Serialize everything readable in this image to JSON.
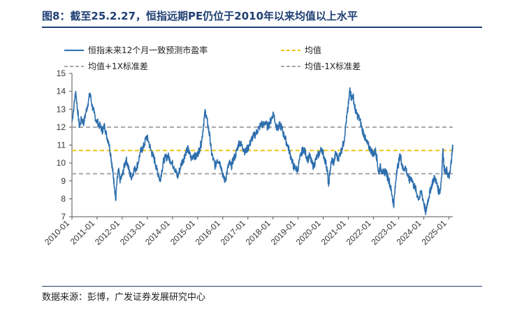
{
  "header": {
    "title": "图8：截至25.2.27，恒指远期PE仍位于2010年以来均值以上水平"
  },
  "footer": {
    "source": "数据来源：彭博，广发证券发展研究中心"
  },
  "colors": {
    "series": "#2e6fae",
    "mean": "#f0c419",
    "band": "#a6a6a6",
    "rule": "#1f3f73"
  },
  "chart_data": {
    "type": "line",
    "title": "图8：截至25.2.27，恒指远期PE仍位于2010年以来均值以上水平",
    "xlabel": "",
    "ylabel": "",
    "ylim": [
      7,
      15
    ],
    "yticks": [
      7,
      8,
      9,
      10,
      11,
      12,
      13,
      14,
      15
    ],
    "xlim": [
      2010.0,
      2025.15
    ],
    "xtick_labels": [
      "2010-01",
      "2011-01",
      "2012-01",
      "2013-01",
      "2014-01",
      "2015-01",
      "2016-01",
      "2017-01",
      "2018-01",
      "2019-01",
      "2020-01",
      "2021-01",
      "2022-01",
      "2023-01",
      "2024-01",
      "2025-01"
    ],
    "legend": {
      "series": "恒指未来12个月一致预测市盈率",
      "mean": "均值",
      "plus": "均值+1X标准差",
      "minus": "均值-1X标准差"
    },
    "reference_lines": {
      "mean": 10.7,
      "plus_1sd": 12.0,
      "minus_1sd": 9.4
    },
    "series": [
      {
        "name": "恒指未来12个月一致预测市盈率",
        "points": [
          [
            2010.0,
            12.3
          ],
          [
            2010.08,
            13.2
          ],
          [
            2010.15,
            14.0
          ],
          [
            2010.22,
            13.0
          ],
          [
            2010.3,
            12.0
          ],
          [
            2010.38,
            12.5
          ],
          [
            2010.46,
            12.2
          ],
          [
            2010.55,
            12.8
          ],
          [
            2010.63,
            13.3
          ],
          [
            2010.72,
            13.9
          ],
          [
            2010.8,
            13.2
          ],
          [
            2010.88,
            12.8
          ],
          [
            2010.96,
            12.4
          ],
          [
            2011.05,
            12.2
          ],
          [
            2011.14,
            12.0
          ],
          [
            2011.22,
            11.8
          ],
          [
            2011.3,
            12.1
          ],
          [
            2011.38,
            11.5
          ],
          [
            2011.46,
            11.2
          ],
          [
            2011.55,
            10.4
          ],
          [
            2011.6,
            9.8
          ],
          [
            2011.65,
            9.2
          ],
          [
            2011.7,
            8.6
          ],
          [
            2011.74,
            7.9
          ],
          [
            2011.78,
            8.8
          ],
          [
            2011.85,
            9.6
          ],
          [
            2011.92,
            9.0
          ],
          [
            2012.0,
            9.3
          ],
          [
            2012.08,
            9.8
          ],
          [
            2012.15,
            10.2
          ],
          [
            2012.22,
            9.9
          ],
          [
            2012.3,
            9.4
          ],
          [
            2012.38,
            9.2
          ],
          [
            2012.46,
            9.6
          ],
          [
            2012.55,
            9.7
          ],
          [
            2012.63,
            10.0
          ],
          [
            2012.72,
            10.6
          ],
          [
            2012.8,
            10.8
          ],
          [
            2012.88,
            11.0
          ],
          [
            2012.96,
            11.5
          ],
          [
            2013.05,
            11.2
          ],
          [
            2013.14,
            10.7
          ],
          [
            2013.22,
            10.4
          ],
          [
            2013.3,
            10.1
          ],
          [
            2013.38,
            9.6
          ],
          [
            2013.46,
            9.3
          ],
          [
            2013.5,
            9.0
          ],
          [
            2013.58,
            9.6
          ],
          [
            2013.66,
            10.2
          ],
          [
            2013.74,
            10.3
          ],
          [
            2013.82,
            10.4
          ],
          [
            2013.9,
            10.2
          ],
          [
            2013.98,
            10.0
          ],
          [
            2014.06,
            9.8
          ],
          [
            2014.14,
            9.5
          ],
          [
            2014.2,
            9.2
          ],
          [
            2014.28,
            9.6
          ],
          [
            2014.36,
            10.0
          ],
          [
            2014.44,
            10.2
          ],
          [
            2014.52,
            10.6
          ],
          [
            2014.6,
            10.8
          ],
          [
            2014.68,
            10.5
          ],
          [
            2014.76,
            10.2
          ],
          [
            2014.84,
            10.5
          ],
          [
            2014.92,
            10.3
          ],
          [
            2015.0,
            10.5
          ],
          [
            2015.08,
            10.8
          ],
          [
            2015.16,
            11.2
          ],
          [
            2015.24,
            12.2
          ],
          [
            2015.3,
            12.9
          ],
          [
            2015.36,
            12.5
          ],
          [
            2015.42,
            12.0
          ],
          [
            2015.48,
            11.5
          ],
          [
            2015.55,
            10.6
          ],
          [
            2015.62,
            10.2
          ],
          [
            2015.7,
            9.8
          ],
          [
            2015.78,
            10.2
          ],
          [
            2015.86,
            10.1
          ],
          [
            2015.94,
            9.8
          ],
          [
            2016.02,
            9.2
          ],
          [
            2016.1,
            9.0
          ],
          [
            2016.18,
            9.6
          ],
          [
            2016.26,
            10.0
          ],
          [
            2016.34,
            9.8
          ],
          [
            2016.42,
            10.2
          ],
          [
            2016.5,
            10.4
          ],
          [
            2016.58,
            10.8
          ],
          [
            2016.66,
            11.2
          ],
          [
            2016.74,
            11.0
          ],
          [
            2016.82,
            10.8
          ],
          [
            2016.9,
            10.6
          ],
          [
            2016.98,
            10.8
          ],
          [
            2017.06,
            11.0
          ],
          [
            2017.14,
            11.3
          ],
          [
            2017.22,
            11.5
          ],
          [
            2017.3,
            11.6
          ],
          [
            2017.38,
            11.8
          ],
          [
            2017.46,
            12.0
          ],
          [
            2017.54,
            12.2
          ],
          [
            2017.62,
            12.1
          ],
          [
            2017.7,
            12.3
          ],
          [
            2017.78,
            12.0
          ],
          [
            2017.86,
            12.2
          ],
          [
            2017.94,
            12.5
          ],
          [
            2018.02,
            12.8
          ],
          [
            2018.1,
            12.2
          ],
          [
            2018.18,
            11.9
          ],
          [
            2018.26,
            12.1
          ],
          [
            2018.34,
            12.0
          ],
          [
            2018.42,
            11.6
          ],
          [
            2018.5,
            11.3
          ],
          [
            2018.58,
            11.0
          ],
          [
            2018.66,
            10.6
          ],
          [
            2018.74,
            10.2
          ],
          [
            2018.82,
            9.8
          ],
          [
            2018.9,
            9.7
          ],
          [
            2018.98,
            9.6
          ],
          [
            2019.06,
            10.2
          ],
          [
            2019.14,
            10.6
          ],
          [
            2019.22,
            10.8
          ],
          [
            2019.3,
            10.5
          ],
          [
            2019.38,
            10.2
          ],
          [
            2019.46,
            10.4
          ],
          [
            2019.54,
            10.0
          ],
          [
            2019.62,
            9.8
          ],
          [
            2019.7,
            10.2
          ],
          [
            2019.78,
            10.4
          ],
          [
            2019.86,
            10.6
          ],
          [
            2019.94,
            10.8
          ],
          [
            2020.02,
            10.4
          ],
          [
            2020.1,
            10.0
          ],
          [
            2020.16,
            9.6
          ],
          [
            2020.21,
            8.7
          ],
          [
            2020.27,
            9.6
          ],
          [
            2020.34,
            10.2
          ],
          [
            2020.42,
            10.0
          ],
          [
            2020.5,
            10.6
          ],
          [
            2020.58,
            10.2
          ],
          [
            2020.66,
            10.5
          ],
          [
            2020.74,
            10.8
          ],
          [
            2020.82,
            11.2
          ],
          [
            2020.9,
            12.2
          ],
          [
            2020.96,
            12.8
          ],
          [
            2021.02,
            13.5
          ],
          [
            2021.06,
            14.2
          ],
          [
            2021.12,
            13.6
          ],
          [
            2021.18,
            13.8
          ],
          [
            2021.24,
            13.2
          ],
          [
            2021.3,
            12.8
          ],
          [
            2021.38,
            12.6
          ],
          [
            2021.46,
            12.4
          ],
          [
            2021.54,
            11.9
          ],
          [
            2021.62,
            11.6
          ],
          [
            2021.7,
            11.2
          ],
          [
            2021.78,
            11.0
          ],
          [
            2021.86,
            10.8
          ],
          [
            2021.94,
            10.6
          ],
          [
            2022.02,
            10.5
          ],
          [
            2022.08,
            10.7
          ],
          [
            2022.14,
            10.2
          ],
          [
            2022.2,
            9.4
          ],
          [
            2022.26,
            9.8
          ],
          [
            2022.32,
            9.6
          ],
          [
            2022.4,
            9.4
          ],
          [
            2022.48,
            9.6
          ],
          [
            2022.56,
            9.2
          ],
          [
            2022.62,
            9.0
          ],
          [
            2022.68,
            8.6
          ],
          [
            2022.74,
            8.2
          ],
          [
            2022.8,
            7.6
          ],
          [
            2022.86,
            8.6
          ],
          [
            2022.92,
            9.6
          ],
          [
            2023.0,
            10.0
          ],
          [
            2023.06,
            10.5
          ],
          [
            2023.12,
            10.0
          ],
          [
            2023.18,
            9.6
          ],
          [
            2023.26,
            9.8
          ],
          [
            2023.34,
            9.4
          ],
          [
            2023.42,
            9.0
          ],
          [
            2023.5,
            9.2
          ],
          [
            2023.58,
            8.8
          ],
          [
            2023.66,
            8.6
          ],
          [
            2023.74,
            8.2
          ],
          [
            2023.82,
            8.0
          ],
          [
            2023.9,
            8.4
          ],
          [
            2023.98,
            7.9
          ],
          [
            2024.04,
            7.5
          ],
          [
            2024.08,
            7.2
          ],
          [
            2024.14,
            7.8
          ],
          [
            2024.2,
            8.1
          ],
          [
            2024.28,
            8.6
          ],
          [
            2024.36,
            9.0
          ],
          [
            2024.44,
            9.2
          ],
          [
            2024.52,
            8.8
          ],
          [
            2024.6,
            8.4
          ],
          [
            2024.66,
            8.5
          ],
          [
            2024.72,
            9.6
          ],
          [
            2024.76,
            10.8
          ],
          [
            2024.8,
            9.8
          ],
          [
            2024.86,
            9.4
          ],
          [
            2024.92,
            9.6
          ],
          [
            2024.98,
            9.2
          ],
          [
            2025.04,
            9.4
          ],
          [
            2025.08,
            10.0
          ],
          [
            2025.12,
            10.5
          ],
          [
            2025.15,
            11.0
          ]
        ]
      }
    ]
  }
}
